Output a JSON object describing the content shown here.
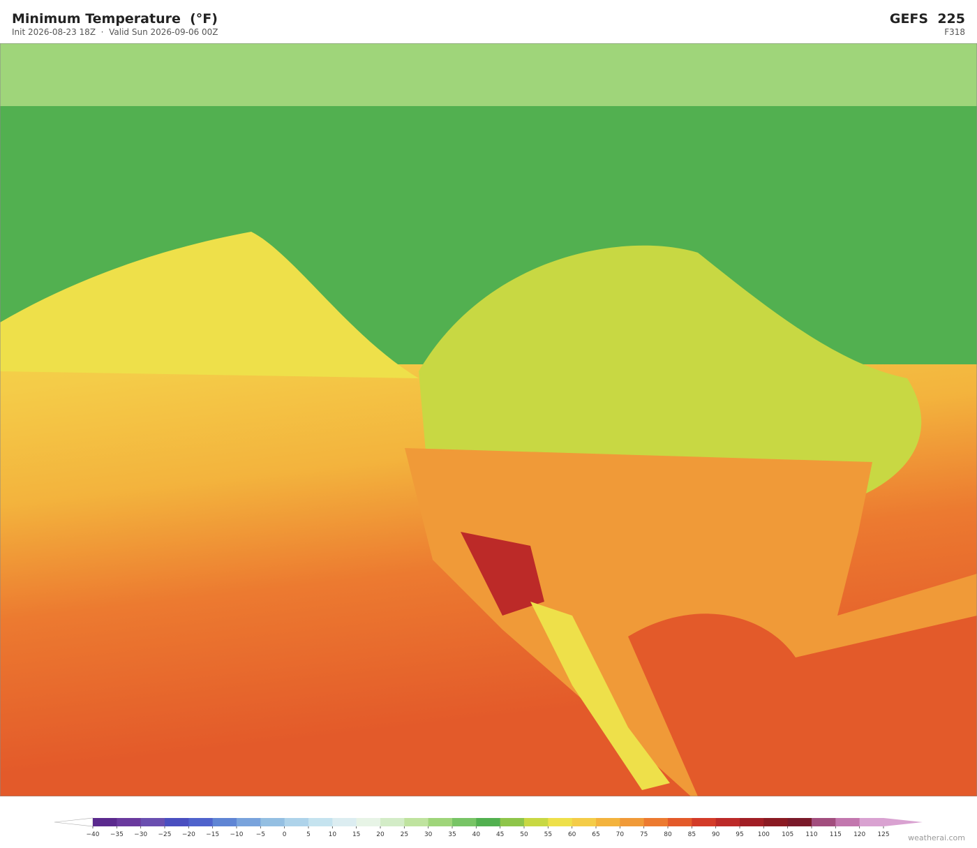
{
  "header": {
    "title": "Minimum Temperature  (°F)",
    "subtitle": "Init 2026-08-23 18Z  ·  Valid Sun 2026-09-06 00Z",
    "model": "GEFS  225",
    "forecast": "F318"
  },
  "colorbar": {
    "labels": [
      "−40",
      "−35",
      "−30",
      "−25",
      "−20",
      "−15",
      "−10",
      "−5",
      "0",
      "5",
      "10",
      "15",
      "20",
      "25",
      "30",
      "35",
      "40",
      "45",
      "50",
      "55",
      "60",
      "65",
      "70",
      "75",
      "80",
      "85",
      "90",
      "95",
      "100",
      "105",
      "110",
      "115",
      "120",
      "125"
    ],
    "colors": [
      "#5b2a8e",
      "#6a3a9e",
      "#6a4fb0",
      "#4a4fc0",
      "#4f63cc",
      "#5f85d4",
      "#79a3dc",
      "#94bfe2",
      "#aed3ea",
      "#c5e3ef",
      "#dcedf1",
      "#e7f4e6",
      "#d3ecc7",
      "#bfe39f",
      "#9fd57a",
      "#78c466",
      "#52b050",
      "#8ec54a",
      "#c8d843",
      "#eee04a",
      "#f4cc48",
      "#f3b33d",
      "#f09a38",
      "#ec7a30",
      "#e35a2a",
      "#d33b28",
      "#bc2a28",
      "#a11e25",
      "#8a1a22",
      "#7a1a2a",
      "#a24e7e",
      "#c277ae",
      "#d9a2d1"
    ],
    "under_color": "#ffffff",
    "over_color": "#d9a2d1"
  },
  "footer": {
    "credit": "weatherai.com"
  }
}
